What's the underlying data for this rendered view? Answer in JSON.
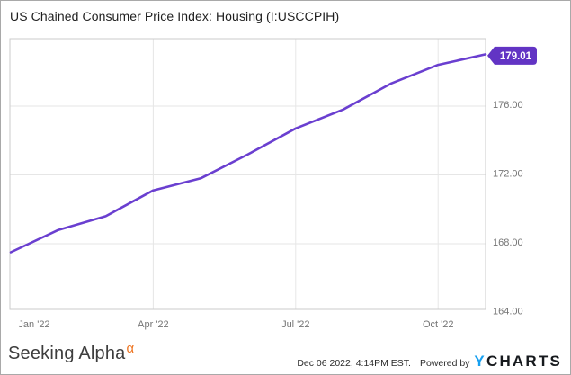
{
  "header": {
    "title": "US Chained Consumer Price Index: Housing (I:USCCPIH)"
  },
  "chart_data": {
    "type": "line",
    "series_name": "US Chained Consumer Price Index: Housing (I:USCCPIH)",
    "x": [
      "Jan '22",
      "Feb '22",
      "Mar '22",
      "Apr '22",
      "May '22",
      "Jun '22",
      "Jul '22",
      "Aug '22",
      "Sep '22",
      "Oct '22",
      "Nov '22"
    ],
    "values": [
      167.5,
      168.8,
      169.6,
      171.1,
      171.8,
      173.2,
      174.7,
      175.8,
      177.3,
      178.4,
      179.01
    ],
    "last_value_label": "179.01",
    "ylim": [
      164.18,
      179.92
    ],
    "yticks": [
      {
        "value": 164,
        "label": "164.00"
      },
      {
        "value": 168,
        "label": "168.00"
      },
      {
        "value": 172,
        "label": "172.00"
      },
      {
        "value": 176,
        "label": "176.00"
      }
    ],
    "xticks": [
      {
        "index": 0,
        "label": "Jan '22"
      },
      {
        "index": 3,
        "label": "Apr '22"
      },
      {
        "index": 6,
        "label": "Jul '22"
      },
      {
        "index": 9,
        "label": "Oct '22"
      }
    ],
    "grid": true,
    "legend_position": "none",
    "line_color": "#6A3FD0",
    "badge_color": "#6234C4",
    "badge_text_color": "#FFFFFF",
    "grid_color": "#E6E6E6",
    "plot_border_color": "#CBCBCB",
    "axis_label_color": "#757575"
  },
  "footer": {
    "brand": {
      "text": "Seeking Alpha",
      "alpha_symbol": "α",
      "alpha_color": "#EE7624"
    },
    "timestamp": "Dec 06 2022, 4:14PM EST.",
    "powered_by": "Powered by",
    "ycharts": {
      "y": "Y",
      "charts": "CHARTS",
      "y_color": "#18A0F0",
      "charts_color": "#16191D"
    }
  }
}
